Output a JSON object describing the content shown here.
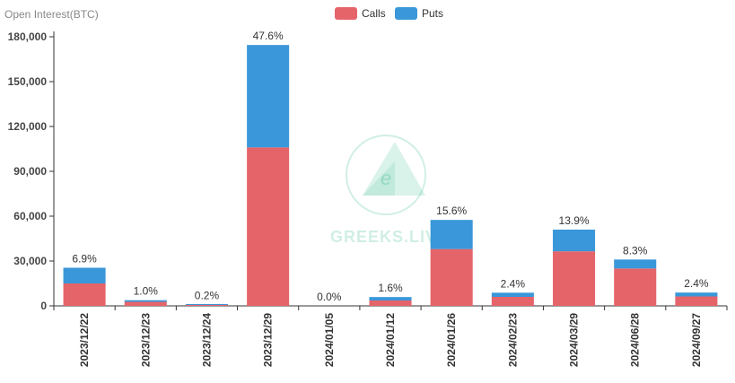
{
  "chart_data": {
    "type": "bar",
    "stacked": true,
    "ylabel": "Open Interest(BTC)",
    "ylim": [
      0,
      180000
    ],
    "yticks": [
      0,
      30000,
      60000,
      90000,
      120000,
      150000,
      180000
    ],
    "ytick_labels": [
      "0",
      "30,000",
      "60,000",
      "90,000",
      "120,000",
      "150,000",
      "180,000"
    ],
    "categories": [
      "2023/12/22",
      "2023/12/23",
      "2023/12/24",
      "2023/12/29",
      "2024/01/05",
      "2024/01/12",
      "2024/01/26",
      "2024/02/23",
      "2024/03/29",
      "2024/06/28",
      "2024/09/27"
    ],
    "series": [
      {
        "name": "Calls",
        "color": "#e5646a",
        "values": [
          15000,
          2700,
          600,
          106000,
          0,
          3600,
          38000,
          6000,
          36500,
          25000,
          6300
        ]
      },
      {
        "name": "Puts",
        "color": "#3a97d9",
        "values": [
          10500,
          1100,
          400,
          68500,
          0,
          2300,
          19500,
          2800,
          14500,
          6000,
          2600
        ]
      }
    ],
    "data_labels": [
      "6.9%",
      "1.0%",
      "0.2%",
      "47.6%",
      "0.0%",
      "1.6%",
      "15.6%",
      "2.4%",
      "13.9%",
      "8.3%",
      "2.4%"
    ],
    "legend": {
      "position": "top-center"
    },
    "grid": false
  },
  "watermark": {
    "text": "GREEKS.LIVE",
    "icon": "greeks-live-logo-icon"
  }
}
